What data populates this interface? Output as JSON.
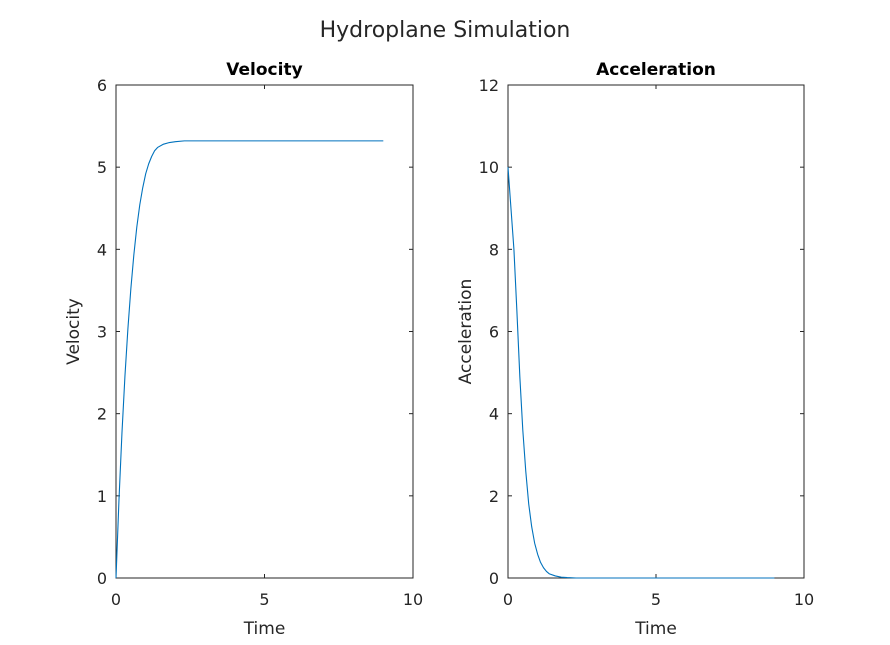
{
  "figure": {
    "title": "Hydroplane Simulation"
  },
  "chart_data": [
    {
      "type": "line",
      "title": "Velocity",
      "xlabel": "Time",
      "ylabel": "Velocity",
      "xlim": [
        0,
        10
      ],
      "ylim": [
        0,
        6
      ],
      "xticks": [
        0,
        5,
        10
      ],
      "yticks": [
        0,
        1,
        2,
        3,
        4,
        5,
        6
      ],
      "grid": false,
      "series": [
        {
          "name": "velocity",
          "color": "#0072BD",
          "x": [
            0,
            0.1,
            0.2,
            0.3,
            0.4,
            0.5,
            0.6,
            0.7,
            0.8,
            0.9,
            1.0,
            1.1,
            1.2,
            1.3,
            1.4,
            1.6,
            1.8,
            2.0,
            2.3,
            2.6,
            3.0,
            3.5,
            4.0,
            5.0,
            6.0,
            7.0,
            8.0,
            9.0
          ],
          "y": [
            0,
            0.95,
            1.76,
            2.45,
            3.03,
            3.52,
            3.93,
            4.27,
            4.54,
            4.75,
            4.92,
            5.04,
            5.13,
            5.2,
            5.24,
            5.28,
            5.3,
            5.31,
            5.32,
            5.32,
            5.32,
            5.32,
            5.32,
            5.32,
            5.32,
            5.32,
            5.32,
            5.32
          ]
        }
      ]
    },
    {
      "type": "line",
      "title": "Acceleration",
      "xlabel": "Time",
      "ylabel": "Acceleration",
      "xlim": [
        0,
        10
      ],
      "ylim": [
        0,
        12
      ],
      "xticks": [
        0,
        5,
        10
      ],
      "yticks": [
        0,
        2,
        4,
        6,
        8,
        10,
        12
      ],
      "grid": false,
      "series": [
        {
          "name": "acceleration",
          "color": "#0072BD",
          "x": [
            0,
            0.1,
            0.2,
            0.3,
            0.4,
            0.5,
            0.6,
            0.7,
            0.8,
            0.9,
            1.0,
            1.1,
            1.2,
            1.3,
            1.4,
            1.6,
            1.8,
            2.0,
            2.3,
            2.6,
            3.0,
            3.5,
            4.0,
            5.0,
            6.0,
            7.0,
            8.0,
            9.0
          ],
          "y": [
            10.0,
            9.0,
            8.0,
            6.5,
            4.9,
            3.6,
            2.6,
            1.8,
            1.25,
            0.85,
            0.58,
            0.38,
            0.25,
            0.16,
            0.1,
            0.05,
            0.02,
            0.01,
            0.0,
            0.0,
            0.0,
            0.0,
            0.0,
            0.0,
            0.0,
            0.0,
            0.0,
            0.0
          ]
        }
      ]
    }
  ]
}
